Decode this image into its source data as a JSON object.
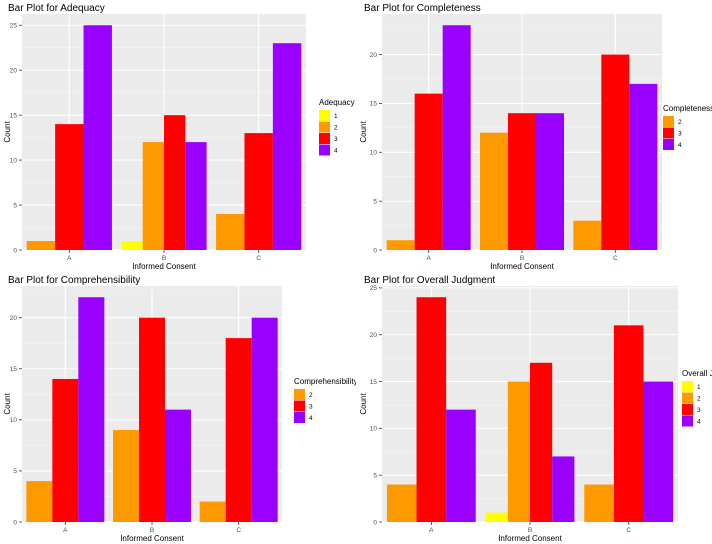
{
  "colors": {
    "panel_bg": "#ebebeb",
    "grid_major": "#ffffff",
    "grid_minor": "#f5f5f5",
    "level_1": "#ffff00",
    "level_2": "#ff9900",
    "level_3": "#ff0000",
    "level_4": "#9900ff"
  },
  "chart_data": [
    {
      "type": "bar",
      "title": "Bar Plot for Adequacy",
      "xlabel": "Informed Consent",
      "ylabel": "Count",
      "categories": [
        "A",
        "B",
        "C"
      ],
      "legend_title": "Adequacy",
      "legend_levels": [
        "1",
        "2",
        "3",
        "4"
      ],
      "ylim": [
        0,
        26.25
      ],
      "yticks": [
        0,
        5,
        10,
        15,
        20,
        25
      ],
      "series": [
        {
          "name": "1",
          "color_key": "level_1",
          "values": [
            null,
            1,
            null
          ]
        },
        {
          "name": "2",
          "color_key": "level_2",
          "values": [
            1,
            12,
            4
          ]
        },
        {
          "name": "3",
          "color_key": "level_3",
          "values": [
            14,
            15,
            13
          ]
        },
        {
          "name": "4",
          "color_key": "level_4",
          "values": [
            25,
            12,
            23
          ]
        }
      ]
    },
    {
      "type": "bar",
      "title": "Bar Plot for Completeness",
      "xlabel": "Informed Consent",
      "ylabel": "Count",
      "categories": [
        "A",
        "B",
        "C"
      ],
      "legend_title": "Completeness",
      "legend_levels": [
        "2",
        "3",
        "4"
      ],
      "ylim": [
        0,
        24.15
      ],
      "yticks": [
        0,
        5,
        10,
        15,
        20
      ],
      "series": [
        {
          "name": "2",
          "color_key": "level_2",
          "values": [
            1,
            12,
            3
          ]
        },
        {
          "name": "3",
          "color_key": "level_3",
          "values": [
            16,
            14,
            20
          ]
        },
        {
          "name": "4",
          "color_key": "level_4",
          "values": [
            23,
            14,
            17
          ]
        }
      ]
    },
    {
      "type": "bar",
      "title": "Bar Plot for Comprehensibility",
      "xlabel": "Informed Consent",
      "ylabel": "Count",
      "categories": [
        "A",
        "B",
        "C"
      ],
      "legend_title": "Comprehensibility",
      "legend_levels": [
        "2",
        "3",
        "4"
      ],
      "ylim": [
        0,
        23.1
      ],
      "yticks": [
        0,
        5,
        10,
        15,
        20
      ],
      "series": [
        {
          "name": "2",
          "color_key": "level_2",
          "values": [
            4,
            9,
            2
          ]
        },
        {
          "name": "3",
          "color_key": "level_3",
          "values": [
            14,
            20,
            18
          ]
        },
        {
          "name": "4",
          "color_key": "level_4",
          "values": [
            22,
            11,
            20
          ]
        }
      ]
    },
    {
      "type": "bar",
      "title": "Bar Plot for Overall Judgment",
      "xlabel": "Informed Consent",
      "ylabel": "Count",
      "categories": [
        "A",
        "B",
        "C"
      ],
      "legend_title": "Overall Judgment",
      "legend_levels": [
        "1",
        "2",
        "3",
        "4"
      ],
      "ylim": [
        0,
        25.2
      ],
      "yticks": [
        0,
        5,
        10,
        15,
        20,
        25
      ],
      "series": [
        {
          "name": "1",
          "color_key": "level_1",
          "values": [
            null,
            1,
            null
          ]
        },
        {
          "name": "2",
          "color_key": "level_2",
          "values": [
            4,
            15,
            4
          ]
        },
        {
          "name": "3",
          "color_key": "level_3",
          "values": [
            24,
            17,
            21
          ]
        },
        {
          "name": "4",
          "color_key": "level_4",
          "values": [
            12,
            7,
            15
          ]
        }
      ]
    }
  ]
}
